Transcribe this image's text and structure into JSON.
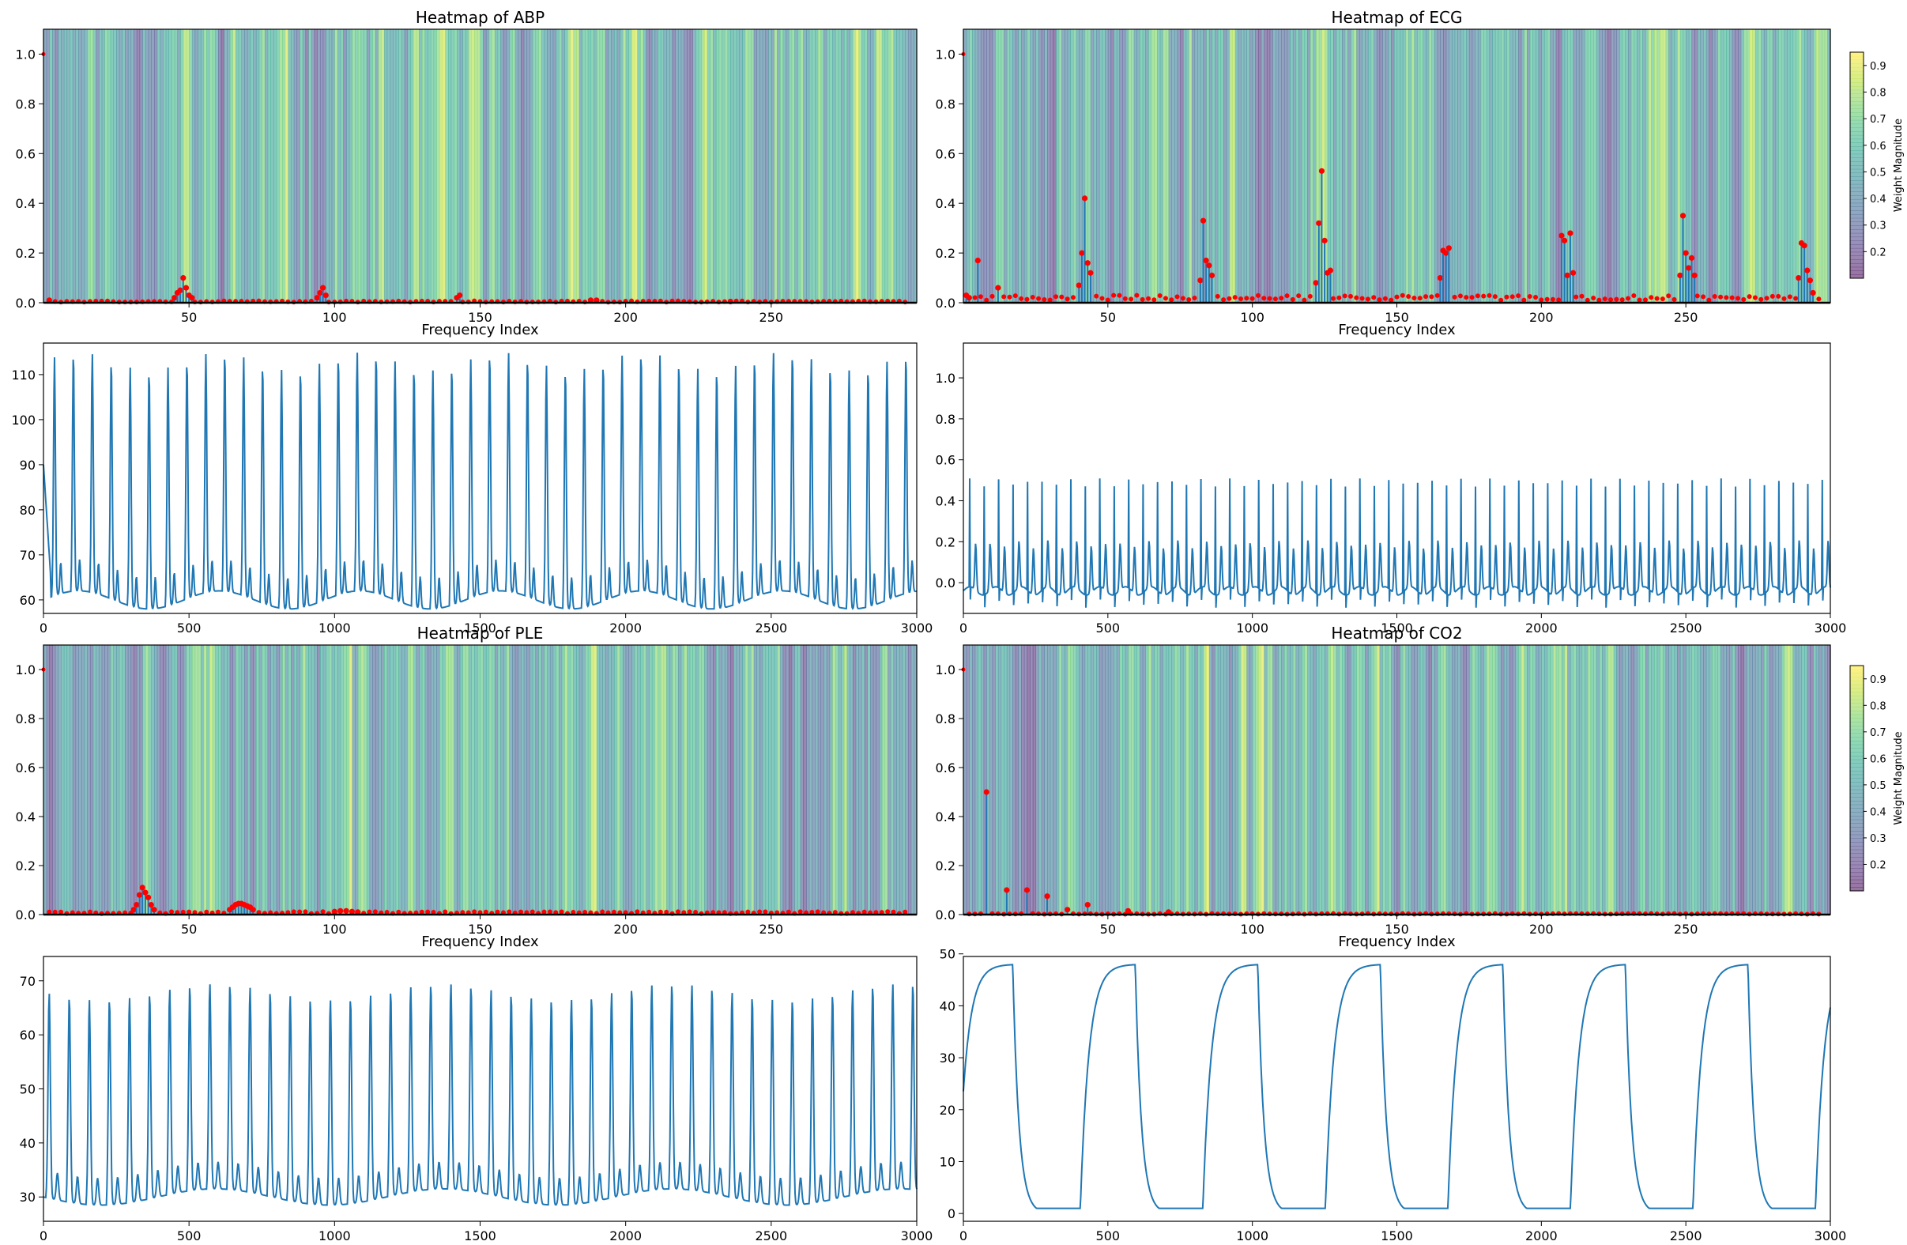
{
  "chart_data": [
    {
      "type": "heatmap",
      "title": "Heatmap of ABP",
      "xlabel": "Frequency Index",
      "ylabel": "",
      "xlim": [
        0,
        300
      ],
      "ylim": [
        0,
        1.1
      ],
      "xticks": [
        50,
        100,
        150,
        200,
        250
      ],
      "yticks": [
        0.0,
        0.2,
        0.4,
        0.6,
        0.8,
        1.0
      ],
      "heatmap_seed": 11,
      "colorbar": false,
      "stem_points": [
        [
          2,
          0.01
        ],
        [
          45,
          0.02
        ],
        [
          46,
          0.04
        ],
        [
          47,
          0.05
        ],
        [
          48,
          0.1
        ],
        [
          49,
          0.06
        ],
        [
          50,
          0.03
        ],
        [
          51,
          0.02
        ],
        [
          94,
          0.02
        ],
        [
          95,
          0.04
        ],
        [
          96,
          0.06
        ],
        [
          97,
          0.03
        ],
        [
          142,
          0.02
        ],
        [
          143,
          0.03
        ],
        [
          188,
          0.01
        ],
        [
          190,
          0.01
        ],
        [
          236,
          0.005
        ]
      ],
      "baseline_level": 0.005,
      "stem_color": "#1f77b4",
      "marker_color": "#ff0000"
    },
    {
      "type": "line",
      "title": "",
      "xlim": [
        0,
        3000
      ],
      "ylim": [
        57,
        117
      ],
      "xticks": [
        0,
        500,
        1000,
        1500,
        2000,
        2500,
        3000
      ],
      "yticks": [
        60,
        70,
        80,
        90,
        100,
        110
      ],
      "signal": "abp",
      "line_color": "#1f77b4"
    },
    {
      "type": "heatmap",
      "title": "Heatmap of ECG",
      "xlabel": "Frequency Index",
      "ylabel": "",
      "xlim": [
        0,
        300
      ],
      "ylim": [
        0,
        1.1
      ],
      "xticks": [
        50,
        100,
        150,
        200,
        250
      ],
      "yticks": [
        0.0,
        0.2,
        0.4,
        0.6,
        0.8,
        1.0
      ],
      "heatmap_seed": 23,
      "colorbar": true,
      "colorbar_label": "Weight Magnitude",
      "colorbar_ticks": [
        0.2,
        0.3,
        0.4,
        0.5,
        0.6,
        0.7,
        0.8,
        0.9
      ],
      "colorbar_range": [
        0.1,
        0.95
      ],
      "stem_points": [
        [
          1,
          0.03
        ],
        [
          2,
          0.02
        ],
        [
          5,
          0.17
        ],
        [
          12,
          0.06
        ],
        [
          40,
          0.07
        ],
        [
          41,
          0.2
        ],
        [
          42,
          0.42
        ],
        [
          43,
          0.16
        ],
        [
          44,
          0.12
        ],
        [
          82,
          0.09
        ],
        [
          83,
          0.33
        ],
        [
          84,
          0.17
        ],
        [
          85,
          0.15
        ],
        [
          86,
          0.11
        ],
        [
          122,
          0.08
        ],
        [
          123,
          0.32
        ],
        [
          124,
          0.53
        ],
        [
          125,
          0.25
        ],
        [
          126,
          0.12
        ],
        [
          127,
          0.13
        ],
        [
          165,
          0.1
        ],
        [
          166,
          0.21
        ],
        [
          167,
          0.2
        ],
        [
          168,
          0.22
        ],
        [
          207,
          0.27
        ],
        [
          208,
          0.25
        ],
        [
          209,
          0.11
        ],
        [
          210,
          0.28
        ],
        [
          211,
          0.12
        ],
        [
          248,
          0.11
        ],
        [
          249,
          0.35
        ],
        [
          250,
          0.2
        ],
        [
          251,
          0.14
        ],
        [
          252,
          0.18
        ],
        [
          253,
          0.11
        ],
        [
          289,
          0.1
        ],
        [
          290,
          0.24
        ],
        [
          291,
          0.23
        ],
        [
          292,
          0.13
        ],
        [
          293,
          0.09
        ],
        [
          294,
          0.04
        ]
      ],
      "baseline_level": 0.02,
      "stem_color": "#1f77b4",
      "marker_color": "#ff0000"
    },
    {
      "type": "line",
      "title": "",
      "xlim": [
        0,
        3000
      ],
      "ylim": [
        -0.15,
        1.17
      ],
      "xticks": [
        0,
        500,
        1000,
        1500,
        2000,
        2500,
        3000
      ],
      "yticks": [
        0.0,
        0.2,
        0.4,
        0.6,
        0.8,
        1.0
      ],
      "signal": "ecg",
      "line_color": "#1f77b4"
    },
    {
      "type": "heatmap",
      "title": "Heatmap of PLE",
      "xlabel": "Frequency Index",
      "ylabel": "",
      "xlim": [
        0,
        300
      ],
      "ylim": [
        0,
        1.1
      ],
      "xticks": [
        50,
        100,
        150,
        200,
        250
      ],
      "yticks": [
        0.0,
        0.2,
        0.4,
        0.6,
        0.8,
        1.0
      ],
      "heatmap_seed": 37,
      "colorbar": false,
      "stem_points": [
        [
          31,
          0.02
        ],
        [
          32,
          0.04
        ],
        [
          33,
          0.08
        ],
        [
          34,
          0.11
        ],
        [
          35,
          0.09
        ],
        [
          36,
          0.07
        ],
        [
          37,
          0.04
        ],
        [
          38,
          0.02
        ],
        [
          64,
          0.02
        ],
        [
          65,
          0.03
        ],
        [
          66,
          0.04
        ],
        [
          67,
          0.045
        ],
        [
          68,
          0.045
        ],
        [
          69,
          0.04
        ],
        [
          70,
          0.035
        ],
        [
          71,
          0.03
        ],
        [
          72,
          0.02
        ],
        [
          100,
          0.012
        ],
        [
          102,
          0.015
        ],
        [
          104,
          0.015
        ],
        [
          106,
          0.012
        ],
        [
          108,
          0.01
        ]
      ],
      "baseline_level": 0.008,
      "stem_color": "#1f77b4",
      "marker_color": "#ff0000"
    },
    {
      "type": "line",
      "title": "",
      "xlim": [
        0,
        3000
      ],
      "ylim": [
        25.5,
        74.5
      ],
      "xticks": [
        0,
        500,
        1000,
        1500,
        2000,
        2500,
        3000
      ],
      "yticks": [
        30,
        40,
        50,
        60,
        70
      ],
      "signal": "ple",
      "line_color": "#1f77b4"
    },
    {
      "type": "heatmap",
      "title": "Heatmap of CO2",
      "xlabel": "Frequency Index",
      "ylabel": "",
      "xlim": [
        0,
        300
      ],
      "ylim": [
        0,
        1.1
      ],
      "xticks": [
        50,
        100,
        150,
        200,
        250
      ],
      "yticks": [
        0.0,
        0.2,
        0.4,
        0.6,
        0.8,
        1.0
      ],
      "heatmap_seed": 53,
      "colorbar": true,
      "colorbar_label": "Weight Magnitude",
      "colorbar_ticks": [
        0.2,
        0.3,
        0.4,
        0.5,
        0.6,
        0.7,
        0.8,
        0.9
      ],
      "colorbar_range": [
        0.1,
        0.95
      ],
      "stem_points": [
        [
          8,
          0.5
        ],
        [
          15,
          0.1
        ],
        [
          22,
          0.1
        ],
        [
          29,
          0.075
        ],
        [
          36,
          0.02
        ],
        [
          43,
          0.04
        ],
        [
          57,
          0.015
        ],
        [
          71,
          0.01
        ]
      ],
      "baseline_level": 0.003,
      "stem_color": "#1f77b4",
      "marker_color": "#ff0000"
    },
    {
      "type": "line",
      "title": "",
      "xlim": [
        0,
        3000
      ],
      "ylim": [
        -1.5,
        49.5
      ],
      "xticks": [
        0,
        500,
        1000,
        1500,
        2000,
        2500,
        3000
      ],
      "yticks": [
        0,
        10,
        20,
        30,
        40,
        50
      ],
      "signal": "co2",
      "line_color": "#1f77b4"
    }
  ]
}
